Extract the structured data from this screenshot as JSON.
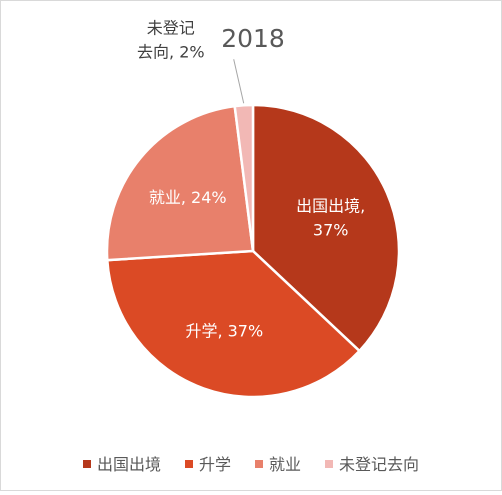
{
  "chart_data": {
    "type": "pie",
    "title": "2018",
    "categories": [
      "出国出境",
      "升学",
      "就业",
      "未登记去向"
    ],
    "values": [
      37,
      37,
      24,
      2
    ],
    "unit": "%",
    "colors": [
      "#b5381b",
      "#db4a25",
      "#e8806b",
      "#f2b8b5"
    ],
    "slice_label_lines": [
      [
        "出国出境,",
        "37%"
      ],
      [
        "升学, 37%"
      ],
      [
        "就业, 24%"
      ],
      [
        "未登记",
        "去向, 2%"
      ]
    ],
    "legend_position": "bottom"
  }
}
